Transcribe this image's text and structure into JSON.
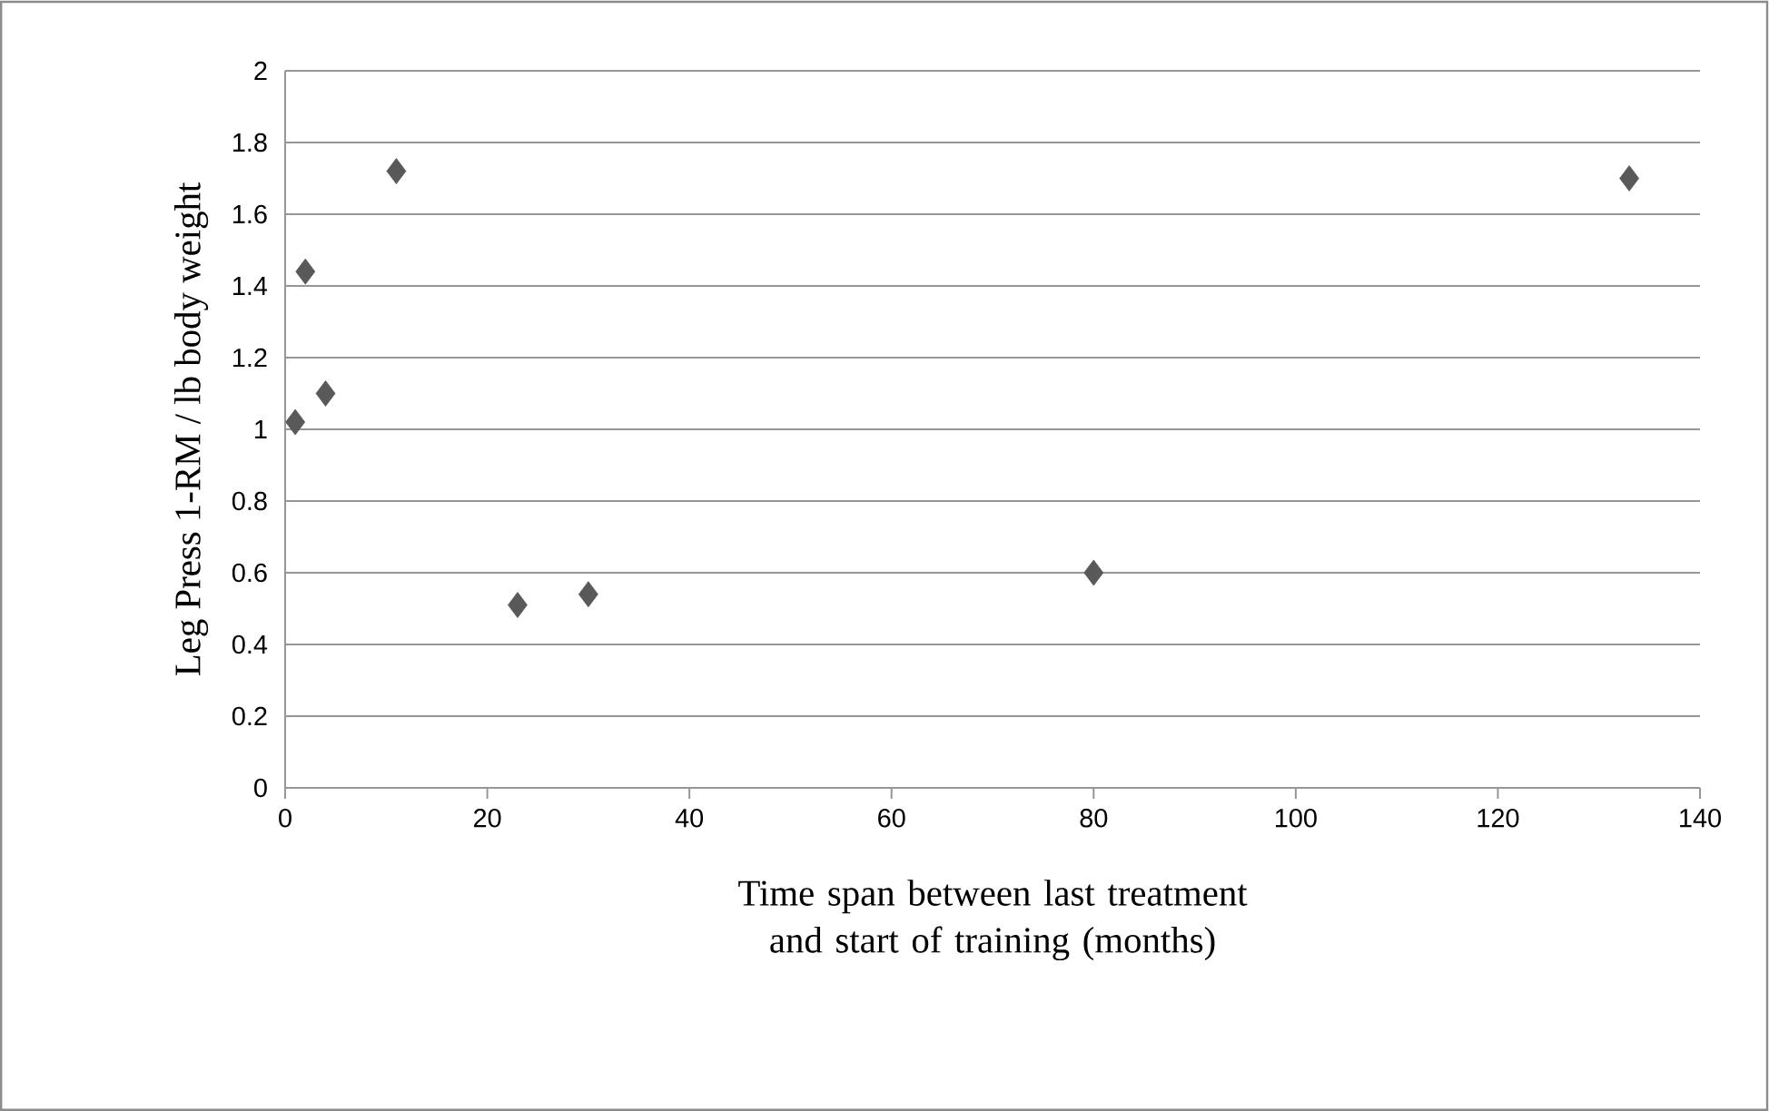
{
  "chart_data": {
    "type": "scatter",
    "xlabel": "Time span between last treatment and start of training (months)",
    "ylabel": "Leg Press 1-RM / lb body weight",
    "x": [
      1,
      2,
      4,
      11,
      23,
      30,
      80,
      133
    ],
    "values": [
      1.02,
      1.44,
      1.1,
      1.72,
      0.51,
      0.54,
      0.6,
      1.7
    ],
    "color": "#595959",
    "marker": "diamond",
    "xlim": [
      0,
      140
    ],
    "xticks": [
      0,
      20,
      40,
      60,
      80,
      100,
      120,
      140
    ],
    "ylim": [
      0,
      2
    ],
    "yticks": [
      0,
      0.2,
      0.4,
      0.6,
      0.8,
      1,
      1.2,
      1.4,
      1.6,
      1.8,
      2
    ],
    "grid": "y"
  }
}
